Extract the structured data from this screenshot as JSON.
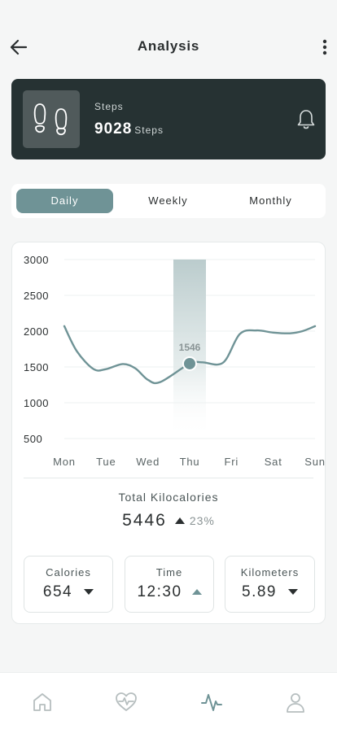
{
  "header": {
    "title": "Analysis"
  },
  "steps_card": {
    "label": "Steps",
    "value": "9028",
    "unit": "Steps"
  },
  "tabs": [
    {
      "label": "Daily",
      "active": true
    },
    {
      "label": "Weekly",
      "active": false
    },
    {
      "label": "Monthly",
      "active": false
    }
  ],
  "chart_data": {
    "type": "line",
    "categories": [
      "Mon",
      "Tue",
      "Wed",
      "Thu",
      "Fri",
      "Sat",
      "Sun"
    ],
    "y_ticks": [
      "3000",
      "2500",
      "2000",
      "1500",
      "1000",
      "500"
    ],
    "ylim": [
      500,
      3000
    ],
    "highlight": {
      "category": "Thu",
      "value": 1546,
      "label": "1546"
    },
    "series": [
      {
        "x": [
          0,
          0.3,
          0.7,
          1.0,
          1.4,
          1.7,
          2.0,
          2.3,
          3.0,
          3.3,
          3.8,
          4.2,
          4.6,
          5.0,
          5.4,
          5.7,
          6.0
        ],
        "values": [
          2070,
          1720,
          1470,
          1470,
          1540,
          1480,
          1320,
          1290,
          1546,
          1565,
          1560,
          1960,
          2010,
          1980,
          1970,
          2000,
          2070
        ]
      }
    ],
    "line_color": "#6f9396",
    "grid": true
  },
  "summary": {
    "label": "Total Kilocalories",
    "value": "5446",
    "change": "23%"
  },
  "stats": [
    {
      "label": "Calories",
      "value": "654"
    },
    {
      "label": "Time",
      "value": "12:30"
    },
    {
      "label": "Kilometers",
      "value": "5.89"
    }
  ],
  "nav": {
    "items": [
      {
        "icon": "home-icon",
        "active": false
      },
      {
        "icon": "heart-pulse-icon",
        "active": false
      },
      {
        "icon": "activity-icon",
        "active": true
      },
      {
        "icon": "profile-icon",
        "active": false
      }
    ]
  },
  "colors": {
    "accent": "#6f9396",
    "card_dark": "#263233",
    "text": "#2b2f30"
  }
}
